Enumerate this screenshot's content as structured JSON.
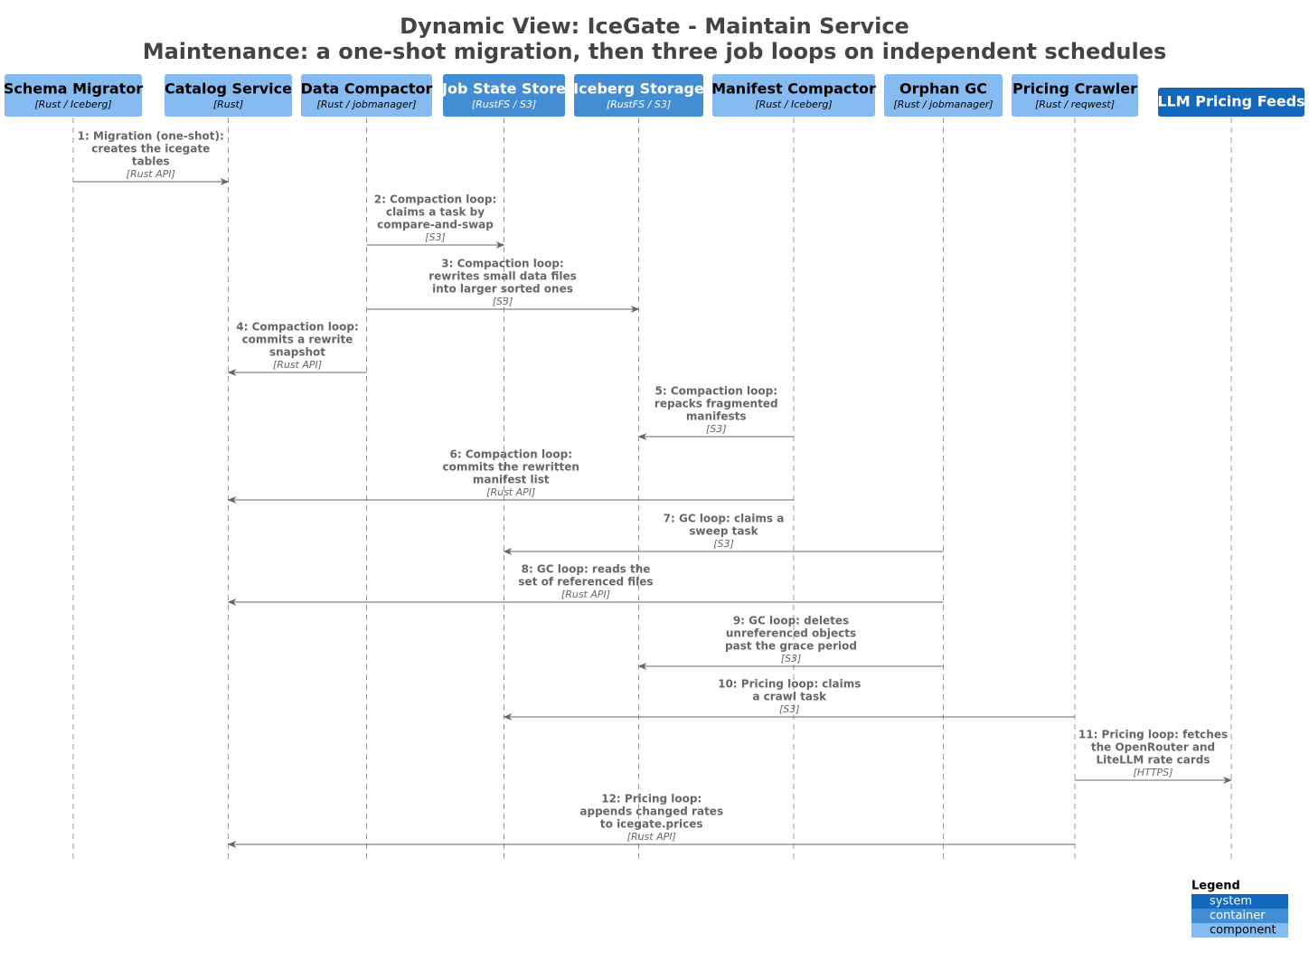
{
  "title": [
    "Dynamic View: IceGate - Maintain Service",
    "Maintenance: a one-shot migration, then three job loops on independent schedules"
  ],
  "participants": [
    {
      "name": "Schema Migrator",
      "technology": "[Rust / Iceberg]",
      "color": "#85bbf0"
    },
    {
      "name": "Catalog Service",
      "technology": "[Rust]",
      "color": "#85bbf0"
    },
    {
      "name": "Data Compactor",
      "technology": "[Rust / jobmanager]",
      "color": "#85bbf0"
    },
    {
      "name": "Job State Store",
      "technology": "[RustFS / S3]",
      "color": "#438dd5"
    },
    {
      "name": "Iceberg Storage",
      "technology": "[RustFS / S3]",
      "color": "#438dd5"
    },
    {
      "name": "Manifest Compactor",
      "technology": "[Rust / Iceberg]",
      "color": "#85bbf0"
    },
    {
      "name": "Orphan GC",
      "technology": "[Rust / jobmanager]",
      "color": "#85bbf0"
    },
    {
      "name": "Pricing Crawler",
      "technology": "[Rust / reqwest]",
      "color": "#85bbf0"
    },
    {
      "name": "LLM Pricing Feeds",
      "color": "#1168bd"
    }
  ],
  "messages": [
    {
      "from": 0,
      "to": 1,
      "text": [
        "1: Migration (one-shot):",
        "creates the icegate",
        "tables"
      ],
      "technology": "[Rust API]"
    },
    {
      "from": 2,
      "to": 3,
      "text": [
        "2: Compaction loop:",
        "claims a task by",
        "compare-and-swap"
      ],
      "technology": "[S3]"
    },
    {
      "from": 2,
      "to": 4,
      "text": [
        "3: Compaction loop:",
        "rewrites small data files",
        "into larger sorted ones"
      ],
      "technology": "[S3]"
    },
    {
      "from": 2,
      "to": 1,
      "text": [
        "4: Compaction loop:",
        "commits a rewrite",
        "snapshot"
      ],
      "technology": "[Rust API]"
    },
    {
      "from": 5,
      "to": 4,
      "text": [
        "5: Compaction loop:",
        "repacks fragmented",
        "manifests"
      ],
      "technology": "[S3]"
    },
    {
      "from": 5,
      "to": 1,
      "text": [
        "6: Compaction loop:",
        "commits the rewritten",
        "manifest list"
      ],
      "technology": "[Rust API]"
    },
    {
      "from": 6,
      "to": 3,
      "text": [
        "7: GC loop: claims a",
        "sweep task"
      ],
      "technology": "[S3]"
    },
    {
      "from": 6,
      "to": 1,
      "text": [
        "8: GC loop: reads the",
        "set of referenced files"
      ],
      "technology": "[Rust API]"
    },
    {
      "from": 6,
      "to": 4,
      "text": [
        "9: GC loop: deletes",
        "unreferenced objects",
        "past the grace period"
      ],
      "technology": "[S3]"
    },
    {
      "from": 7,
      "to": 3,
      "text": [
        "10: Pricing loop: claims",
        "a crawl task"
      ],
      "technology": "[S3]"
    },
    {
      "from": 7,
      "to": 8,
      "text": [
        "11: Pricing loop: fetches",
        "the OpenRouter and",
        "LiteLLM rate cards"
      ],
      "technology": "[HTTPS]"
    },
    {
      "from": 7,
      "to": 1,
      "text": [
        "12: Pricing loop:",
        "appends changed rates",
        "to icegate.prices"
      ],
      "technology": "[Rust API]"
    }
  ],
  "legend": {
    "title": "Legend",
    "items": [
      {
        "label": "system",
        "color": "#1168bd"
      },
      {
        "label": "container",
        "color": "#438dd5"
      },
      {
        "label": "component",
        "color": "#85bbf0"
      }
    ]
  }
}
